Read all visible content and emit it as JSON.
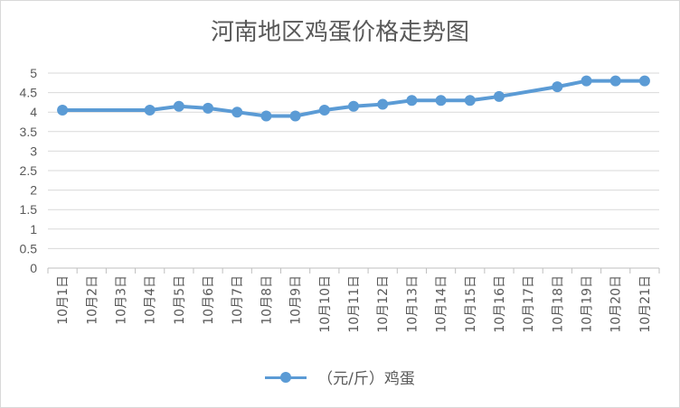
{
  "chart_data": {
    "type": "line",
    "title": "河南地区鸡蛋价格走势图",
    "xlabel": "",
    "ylabel": "",
    "ylim": [
      0,
      5
    ],
    "yticks": [
      "0",
      "0.5",
      "1",
      "1.5",
      "2",
      "2.5",
      "3",
      "3.5",
      "4",
      "4.5",
      "5"
    ],
    "grid": true,
    "legend_position": "bottom",
    "categories": [
      "10月1日",
      "10月2日",
      "10月3日",
      "10月4日",
      "10月5日",
      "10月6日",
      "10月7日",
      "10月8日",
      "10月9日",
      "10月10日",
      "10月11日",
      "10月12日",
      "10月13日",
      "10月14日",
      "10月15日",
      "10月16日",
      "10月17日",
      "10月18日",
      "10月19日",
      "10月20日",
      "10月21日"
    ],
    "series": [
      {
        "name": "（元/斤）鸡蛋",
        "color": "#5b9bd5",
        "values": [
          4.05,
          null,
          null,
          4.05,
          4.15,
          4.1,
          4.0,
          3.9,
          3.9,
          4.05,
          4.15,
          4.2,
          4.3,
          4.3,
          4.3,
          4.4,
          null,
          4.65,
          4.8,
          4.8,
          4.8
        ]
      }
    ]
  }
}
